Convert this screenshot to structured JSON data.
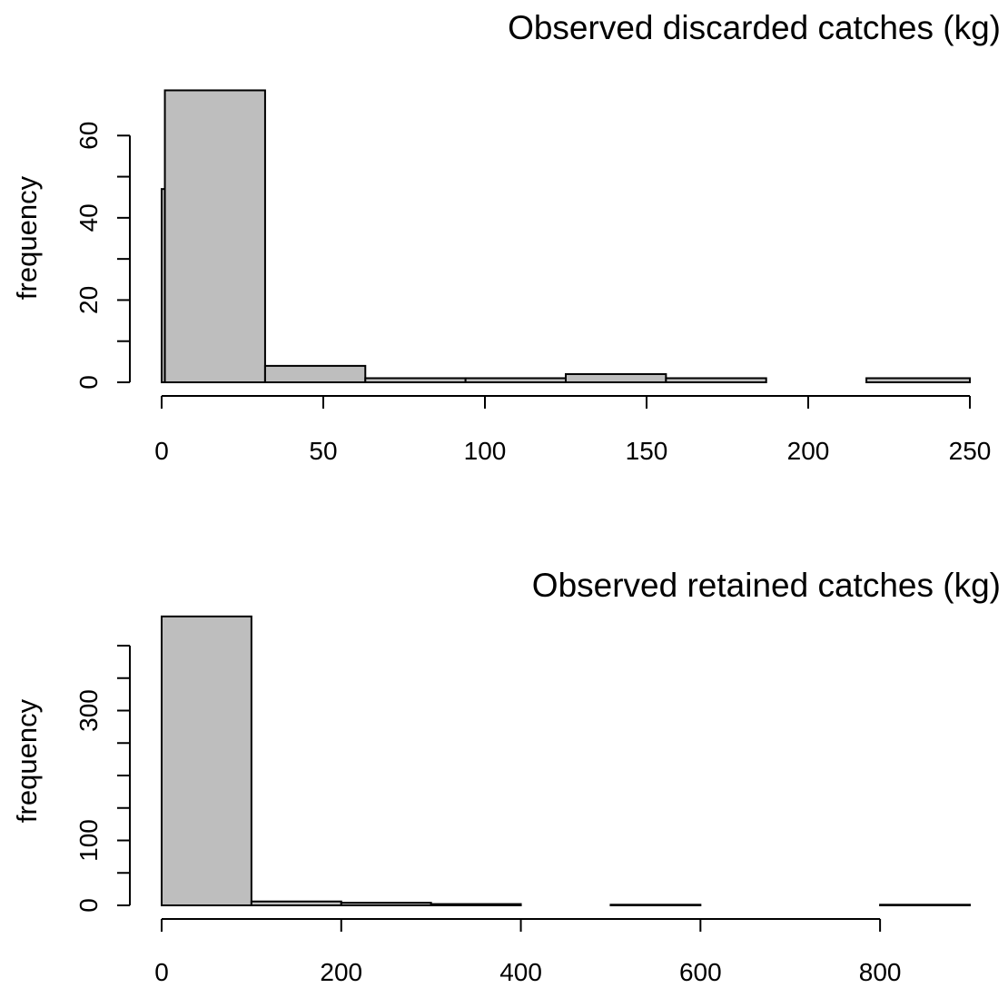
{
  "colors": {
    "bar_fill": "#bebebe",
    "stroke": "#000000",
    "background": "#ffffff"
  },
  "chart_data": [
    {
      "type": "bar",
      "subtype": "histogram",
      "title": "Observed discarded catches (kg)",
      "xlabel": "",
      "ylabel": "frequency",
      "xlim": [
        0,
        250
      ],
      "ylim": [
        0,
        70
      ],
      "xticks": [
        0,
        50,
        100,
        150,
        200,
        250
      ],
      "yticks": [
        0,
        20,
        40,
        60
      ],
      "grid": false,
      "bins": [
        {
          "x0": 0,
          "x1": 1,
          "count": 47
        },
        {
          "x0": 1,
          "x1": 32,
          "count": 71
        },
        {
          "x0": 32,
          "x1": 63,
          "count": 4
        },
        {
          "x0": 63,
          "x1": 94,
          "count": 1
        },
        {
          "x0": 94,
          "x1": 125,
          "count": 1
        },
        {
          "x0": 125,
          "x1": 156,
          "count": 2
        },
        {
          "x0": 156,
          "x1": 187,
          "count": 1
        },
        {
          "x0": 187,
          "x1": 218,
          "count": 0
        },
        {
          "x0": 218,
          "x1": 250,
          "count": 1
        }
      ]
    },
    {
      "type": "bar",
      "subtype": "histogram",
      "title": "Observed retained catches (kg)",
      "xlabel": "",
      "ylabel": "frequency",
      "xlim": [
        0,
        900
      ],
      "ylim": [
        0,
        400
      ],
      "xticks": [
        0,
        200,
        400,
        600,
        800
      ],
      "yticks": [
        0,
        100,
        200,
        300,
        400
      ],
      "ytick_labels": [
        "0",
        "100",
        "",
        "300",
        ""
      ],
      "grid": false,
      "bins": [
        {
          "x0": 0,
          "x1": 100,
          "count": 445
        },
        {
          "x0": 100,
          "x1": 200,
          "count": 6
        },
        {
          "x0": 200,
          "x1": 300,
          "count": 4
        },
        {
          "x0": 300,
          "x1": 400,
          "count": 2
        },
        {
          "x0": 400,
          "x1": 500,
          "count": 0
        },
        {
          "x0": 500,
          "x1": 600,
          "count": 1
        },
        {
          "x0": 600,
          "x1": 700,
          "count": 0
        },
        {
          "x0": 700,
          "x1": 800,
          "count": 0
        },
        {
          "x0": 800,
          "x1": 900,
          "count": 1
        }
      ]
    }
  ]
}
